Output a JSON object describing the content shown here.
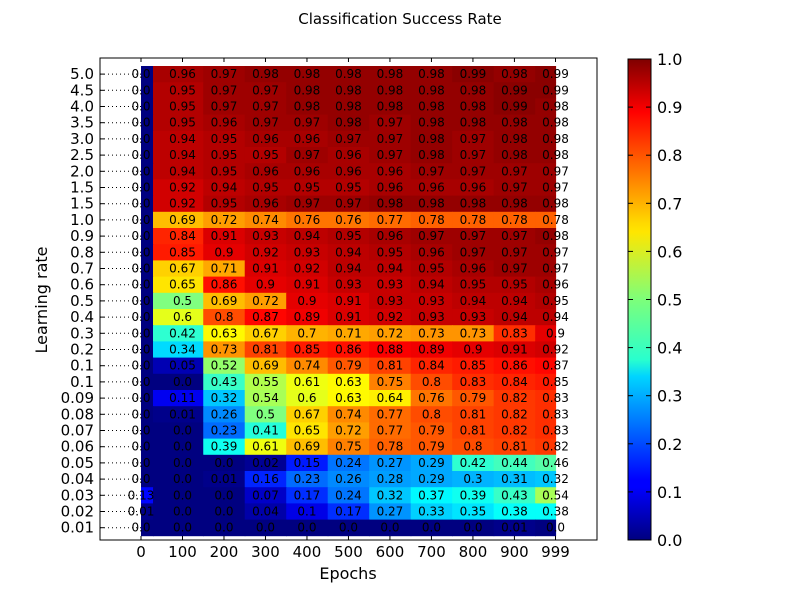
{
  "chart_data": {
    "type": "heatmap",
    "title": "Classification Success Rate",
    "xlabel": "Epochs",
    "ylabel": "Learning rate",
    "x_ticks": [
      "0",
      "100",
      "200",
      "300",
      "400",
      "500",
      "600",
      "700",
      "800",
      "900",
      "999"
    ],
    "y_labels": [
      "5.0",
      "4.5",
      "4.0",
      "3.5",
      "3.0",
      "2.5",
      "2.0",
      "1.5",
      "1.5",
      "1.0",
      "0.9",
      "0.8",
      "0.7",
      "0.6",
      "0.5",
      "0.4",
      "0.3",
      "0.2",
      "0.1",
      "0.1",
      "0.09",
      "0.08",
      "0.07",
      "0.06",
      "0.05",
      "0.04",
      "0.03",
      "0.02",
      "0.01"
    ],
    "col_epochs": [
      0,
      100,
      200,
      300,
      400,
      500,
      600,
      700,
      800,
      900,
      999
    ],
    "values": [
      [
        "0.0",
        "0.96",
        "0.97",
        "0.98",
        "0.98",
        "0.98",
        "0.98",
        "0.98",
        "0.99",
        "0.98",
        "0.99"
      ],
      [
        "0.0",
        "0.95",
        "0.97",
        "0.97",
        "0.98",
        "0.98",
        "0.98",
        "0.98",
        "0.98",
        "0.99",
        "0.99"
      ],
      [
        "0.0",
        "0.95",
        "0.97",
        "0.97",
        "0.98",
        "0.98",
        "0.98",
        "0.98",
        "0.98",
        "0.99",
        "0.98"
      ],
      [
        "0.0",
        "0.95",
        "0.96",
        "0.97",
        "0.97",
        "0.98",
        "0.97",
        "0.98",
        "0.98",
        "0.98",
        "0.98"
      ],
      [
        "0.0",
        "0.94",
        "0.95",
        "0.96",
        "0.96",
        "0.97",
        "0.97",
        "0.98",
        "0.97",
        "0.98",
        "0.98"
      ],
      [
        "0.0",
        "0.94",
        "0.95",
        "0.95",
        "0.97",
        "0.96",
        "0.97",
        "0.98",
        "0.97",
        "0.98",
        "0.98"
      ],
      [
        "0.0",
        "0.94",
        "0.95",
        "0.96",
        "0.96",
        "0.96",
        "0.96",
        "0.97",
        "0.97",
        "0.97",
        "0.97"
      ],
      [
        "0.0",
        "0.92",
        "0.94",
        "0.95",
        "0.95",
        "0.95",
        "0.96",
        "0.96",
        "0.96",
        "0.97",
        "0.97"
      ],
      [
        "0.0",
        "0.92",
        "0.95",
        "0.96",
        "0.97",
        "0.97",
        "0.98",
        "0.98",
        "0.98",
        "0.98",
        "0.98"
      ],
      [
        "0.0",
        "0.69",
        "0.72",
        "0.74",
        "0.76",
        "0.76",
        "0.77",
        "0.78",
        "0.78",
        "0.78",
        "0.78"
      ],
      [
        "0.0",
        "0.84",
        "0.91",
        "0.93",
        "0.94",
        "0.95",
        "0.96",
        "0.97",
        "0.97",
        "0.97",
        "0.98"
      ],
      [
        "0.0",
        "0.85",
        "0.9",
        "0.92",
        "0.93",
        "0.94",
        "0.95",
        "0.96",
        "0.97",
        "0.97",
        "0.97"
      ],
      [
        "0.0",
        "0.67",
        "0.71",
        "0.91",
        "0.92",
        "0.94",
        "0.94",
        "0.95",
        "0.96",
        "0.97",
        "0.97"
      ],
      [
        "0.0",
        "0.65",
        "0.86",
        "0.9",
        "0.91",
        "0.93",
        "0.93",
        "0.94",
        "0.95",
        "0.95",
        "0.96"
      ],
      [
        "0.0",
        "0.5",
        "0.69",
        "0.72",
        "0.9",
        "0.91",
        "0.93",
        "0.93",
        "0.94",
        "0.94",
        "0.95"
      ],
      [
        "0.0",
        "0.6",
        "0.8",
        "0.87",
        "0.89",
        "0.91",
        "0.92",
        "0.93",
        "0.93",
        "0.94",
        "0.94"
      ],
      [
        "0.0",
        "0.42",
        "0.63",
        "0.67",
        "0.7",
        "0.71",
        "0.72",
        "0.73",
        "0.73",
        "0.83",
        "0.9"
      ],
      [
        "0.0",
        "0.34",
        "0.73",
        "0.81",
        "0.85",
        "0.86",
        "0.88",
        "0.89",
        "0.9",
        "0.91",
        "0.92"
      ],
      [
        "0.0",
        "0.05",
        "0.52",
        "0.69",
        "0.74",
        "0.79",
        "0.81",
        "0.84",
        "0.85",
        "0.86",
        "0.87"
      ],
      [
        "0.0",
        "0.0",
        "0.43",
        "0.55",
        "0.61",
        "0.63",
        "0.75",
        "0.8",
        "0.83",
        "0.84",
        "0.85"
      ],
      [
        "0.0",
        "0.11",
        "0.32",
        "0.54",
        "0.6",
        "0.63",
        "0.64",
        "0.76",
        "0.79",
        "0.82",
        "0.83"
      ],
      [
        "0.0",
        "0.01",
        "0.26",
        "0.5",
        "0.67",
        "0.74",
        "0.77",
        "0.8",
        "0.81",
        "0.82",
        "0.83"
      ],
      [
        "0.0",
        "0.0",
        "0.23",
        "0.41",
        "0.65",
        "0.72",
        "0.77",
        "0.79",
        "0.81",
        "0.82",
        "0.83"
      ],
      [
        "0.0",
        "0.0",
        "0.39",
        "0.61",
        "0.69",
        "0.75",
        "0.78",
        "0.79",
        "0.8",
        "0.81",
        "0.82"
      ],
      [
        "0.0",
        "0.0",
        "0.0",
        "0.02",
        "0.15",
        "0.24",
        "0.27",
        "0.29",
        "0.42",
        "0.44",
        "0.46"
      ],
      [
        "0.0",
        "0.0",
        "0.01",
        "0.16",
        "0.23",
        "0.26",
        "0.28",
        "0.29",
        "0.3",
        "0.31",
        "0.32"
      ],
      [
        "0.13",
        "0.0",
        "0.0",
        "0.07",
        "0.17",
        "0.24",
        "0.32",
        "0.37",
        "0.39",
        "0.43",
        "0.54"
      ],
      [
        "0.01",
        "0.0",
        "0.0",
        "0.04",
        "0.1",
        "0.17",
        "0.27",
        "0.33",
        "0.35",
        "0.38",
        "0.38"
      ],
      [
        "0.0",
        "0.0",
        "0.0",
        "0.0",
        "0.0",
        "0.0",
        "0.0",
        "0.0",
        "0.0",
        "0.01",
        "0.0"
      ]
    ],
    "colorbar": {
      "min": 0.0,
      "max": 1.0,
      "ticks": [
        "0.0",
        "0.1",
        "0.2",
        "0.3",
        "0.4",
        "0.5",
        "0.6",
        "0.7",
        "0.8",
        "0.9",
        "1.0"
      ],
      "colormap": "jet"
    },
    "grid": false
  }
}
